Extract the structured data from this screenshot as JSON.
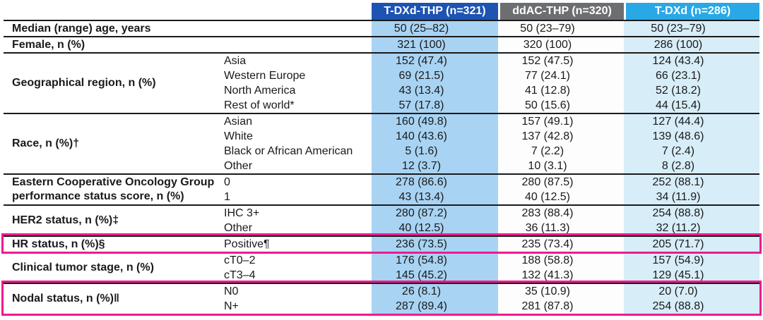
{
  "table": {
    "highlight_color": "#ed1b8f",
    "border_color": "#1a1a1a",
    "columns": [
      {
        "label": "T-DXd-THP (n=321)",
        "header_bg": "#1d53b2",
        "body_bg": "#a8d3f3"
      },
      {
        "label": "ddAC-THP (n=320)",
        "header_bg": "#6d6e71",
        "body_bg": "#fdfdfd"
      },
      {
        "label": "T-DXd (n=286)",
        "header_bg": "#29a8e6",
        "body_bg": "#d7edf8"
      }
    ],
    "rows": [
      {
        "label": "Median (range) age, years",
        "highlight": false,
        "lines": [
          {
            "category": "",
            "values": [
              "50 (25–82)",
              "50 (23–79)",
              "50 (23–79)"
            ]
          }
        ]
      },
      {
        "label": "Female, n (%)",
        "highlight": false,
        "lines": [
          {
            "category": "",
            "values": [
              "321 (100)",
              "320 (100)",
              "286 (100)"
            ]
          }
        ]
      },
      {
        "label": "Geographical region, n (%)",
        "highlight": false,
        "lines": [
          {
            "category": "Asia",
            "values": [
              "152 (47.4)",
              "152 (47.5)",
              "124 (43.4)"
            ]
          },
          {
            "category": "Western Europe",
            "values": [
              "69 (21.5)",
              "77 (24.1)",
              "66 (23.1)"
            ]
          },
          {
            "category": "North America",
            "values": [
              "43 (13.4)",
              "41 (12.8)",
              "52 (18.2)"
            ]
          },
          {
            "category": "Rest of world*",
            "values": [
              "57 (17.8)",
              "50 (15.6)",
              "44 (15.4)"
            ]
          }
        ]
      },
      {
        "label": "Race, n (%)†",
        "highlight": false,
        "lines": [
          {
            "category": "Asian",
            "values": [
              "160 (49.8)",
              "157 (49.1)",
              "127 (44.4)"
            ]
          },
          {
            "category": "White",
            "values": [
              "140 (43.6)",
              "137 (42.8)",
              "139 (48.6)"
            ]
          },
          {
            "category": "Black or African American",
            "values": [
              "5 (1.6)",
              "7 (2.2)",
              "7 (2.4)"
            ]
          },
          {
            "category": "Other",
            "values": [
              "12 (3.7)",
              "10 (3.1)",
              "8 (2.8)"
            ]
          }
        ]
      },
      {
        "label": "Eastern Cooperative Oncology Group performance status score, n (%)",
        "highlight": false,
        "lines": [
          {
            "category": "0",
            "values": [
              "278 (86.6)",
              "280 (87.5)",
              "252 (88.1)"
            ]
          },
          {
            "category": "1",
            "values": [
              "43 (13.4)",
              "40 (12.5)",
              "34 (11.9)"
            ]
          }
        ]
      },
      {
        "label": "HER2 status, n (%)‡",
        "highlight": false,
        "lines": [
          {
            "category": "IHC 3+",
            "values": [
              "280 (87.2)",
              "283 (88.4)",
              "254 (88.8)"
            ]
          },
          {
            "category": "Other",
            "values": [
              "40 (12.5)",
              "36 (11.3)",
              "32 (11.2)"
            ]
          }
        ]
      },
      {
        "label": "HR status, n (%)§",
        "highlight": true,
        "lines": [
          {
            "category": "Positive¶",
            "values": [
              "236 (73.5)",
              "235 (73.4)",
              "205 (71.7)"
            ]
          }
        ]
      },
      {
        "label": "Clinical tumor stage, n (%)",
        "highlight": false,
        "lines": [
          {
            "category": "cT0–2",
            "values": [
              "176 (54.8)",
              "188 (58.8)",
              "157 (54.9)"
            ]
          },
          {
            "category": "cT3–4",
            "values": [
              "145 (45.2)",
              "132 (41.3)",
              "129 (45.1)"
            ]
          }
        ]
      },
      {
        "label": "Nodal status, n (%)‖",
        "highlight": true,
        "lines": [
          {
            "category": "N0",
            "values": [
              "26 (8.1)",
              "35 (10.9)",
              "20 (7.0)"
            ]
          },
          {
            "category": "N+",
            "values": [
              "287 (89.4)",
              "281 (87.8)",
              "254 (88.8)"
            ]
          }
        ]
      }
    ]
  }
}
